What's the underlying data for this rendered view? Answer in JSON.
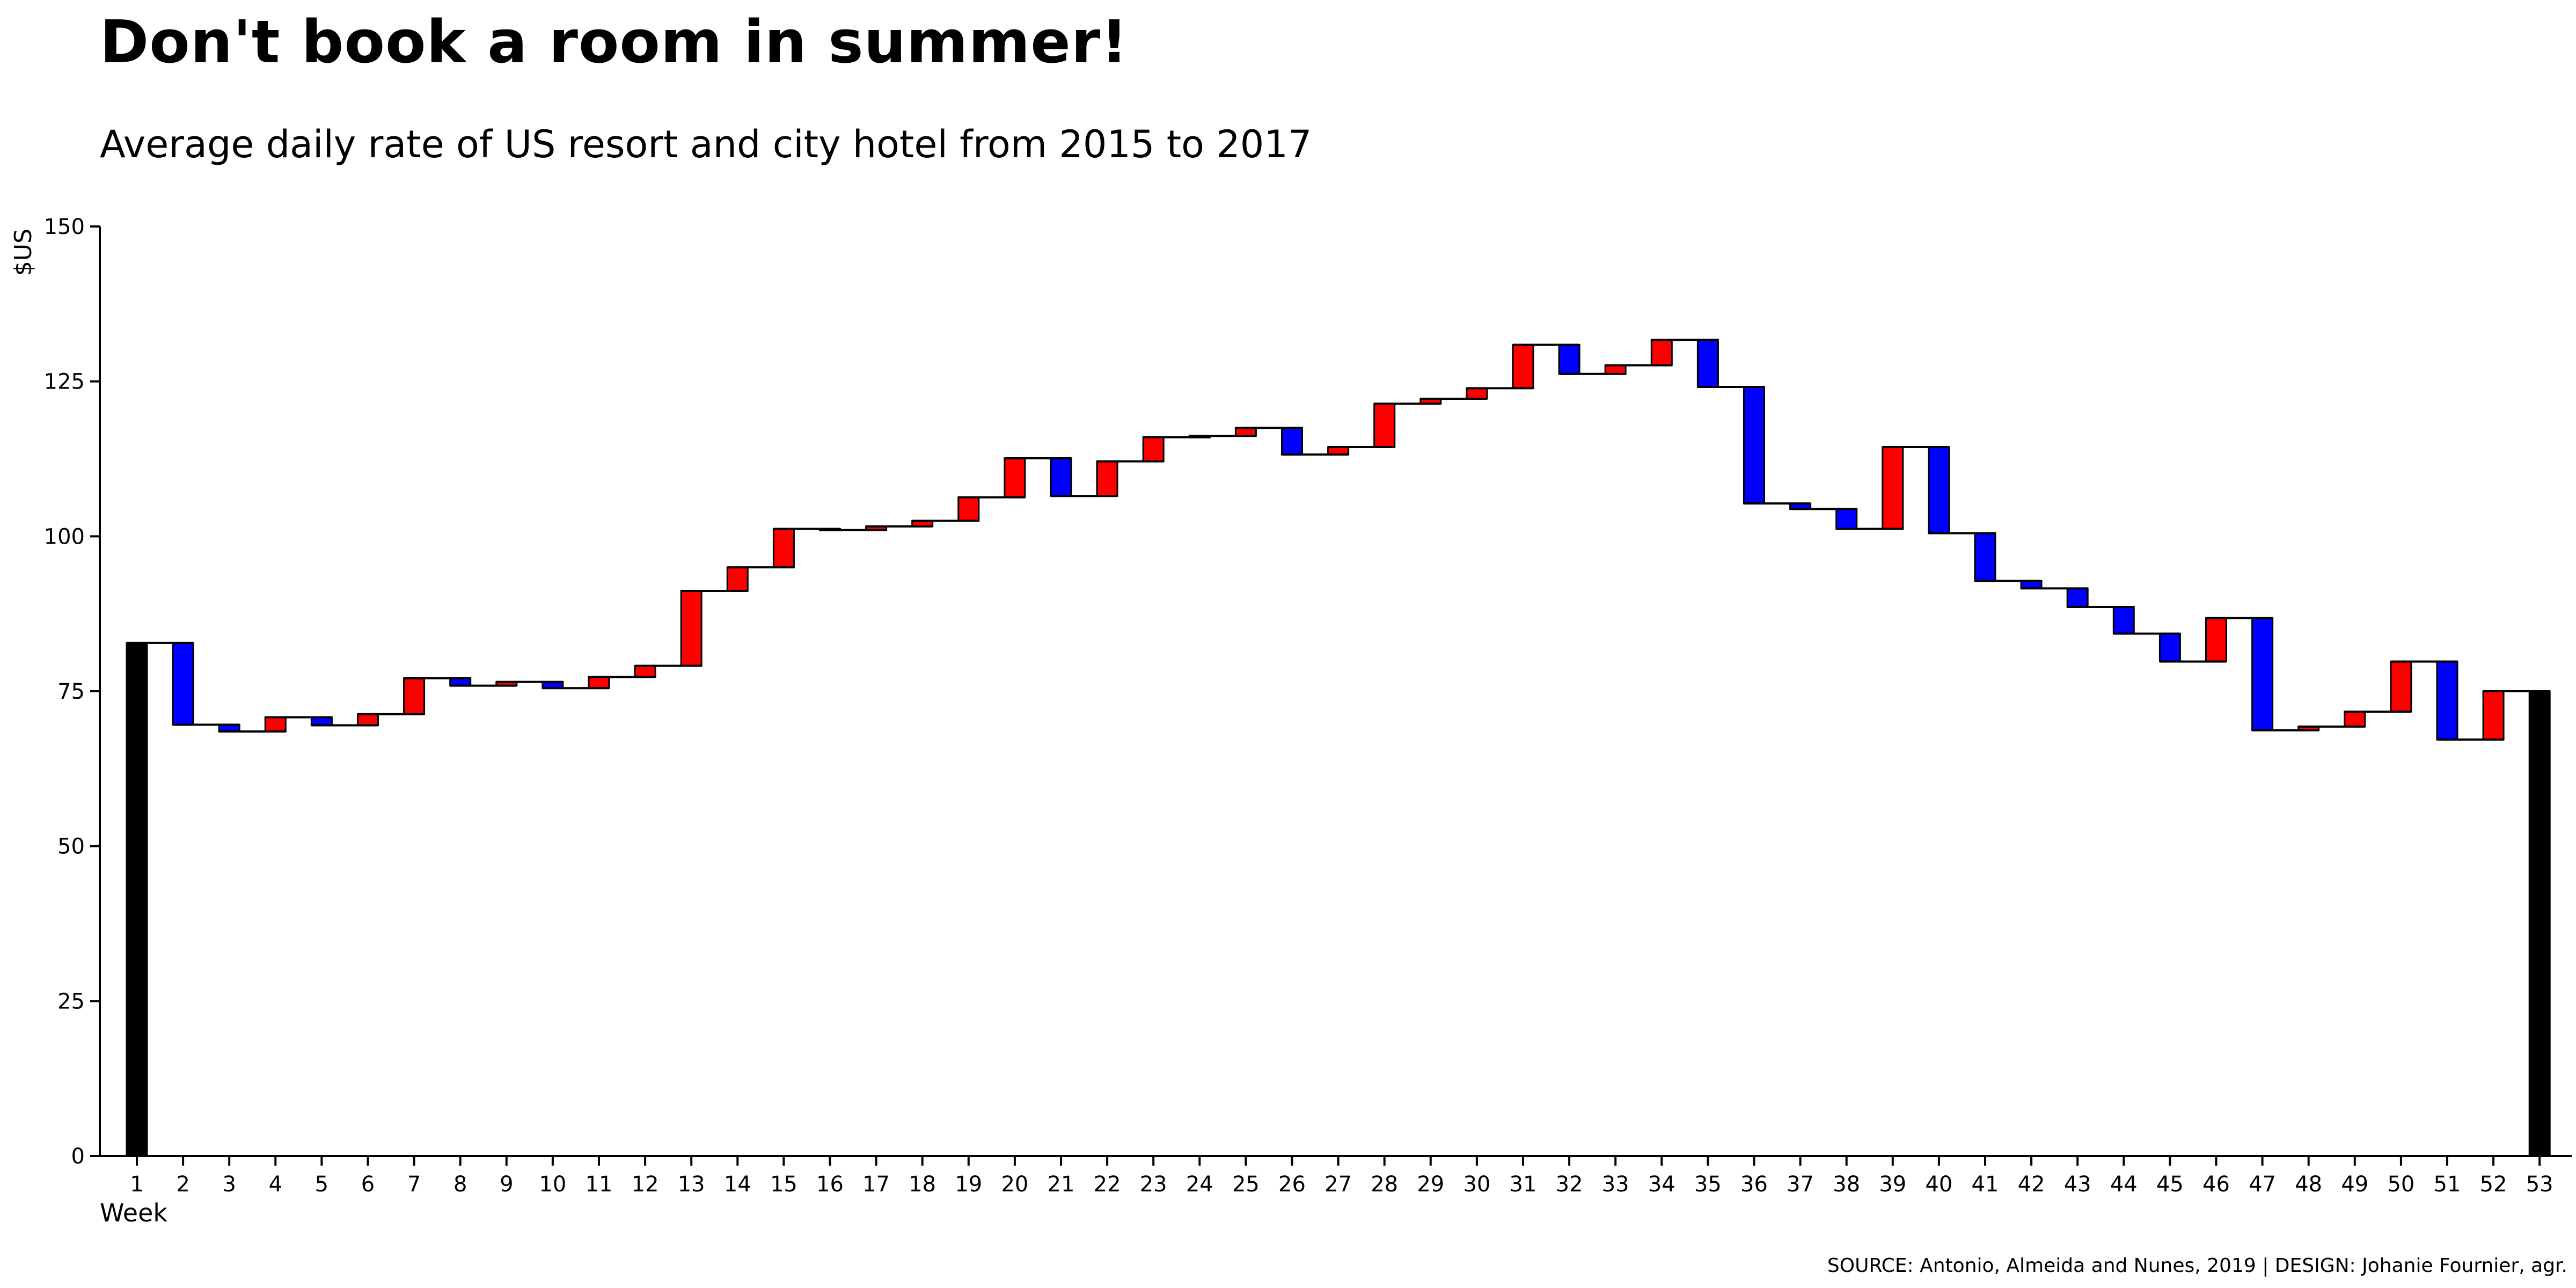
{
  "chart_data": {
    "type": "waterfall",
    "title": "Don't book a room in summer!",
    "subtitle": "Average daily rate of US resort and city hotel from 2015 to 2017",
    "ylabel": "$US",
    "xlabel": "Week",
    "ylim": [
      0,
      150
    ],
    "yticks": [
      0,
      25,
      50,
      75,
      100,
      125,
      150
    ],
    "categories": [
      "1",
      "2",
      "3",
      "4",
      "5",
      "6",
      "7",
      "8",
      "9",
      "10",
      "11",
      "12",
      "13",
      "14",
      "15",
      "16",
      "17",
      "18",
      "19",
      "20",
      "21",
      "22",
      "23",
      "24",
      "25",
      "26",
      "27",
      "28",
      "29",
      "30",
      "31",
      "32",
      "33",
      "34",
      "35",
      "36",
      "37",
      "38",
      "39",
      "40",
      "41",
      "42",
      "43",
      "44",
      "45",
      "46",
      "47",
      "48",
      "49",
      "50",
      "51",
      "52",
      "53"
    ],
    "values": [
      82.8,
      69.6,
      68.5,
      70.8,
      69.5,
      71.3,
      77.1,
      75.9,
      76.5,
      75.5,
      77.3,
      79.1,
      91.2,
      95.0,
      101.2,
      101.0,
      101.6,
      102.5,
      106.3,
      112.6,
      106.5,
      112.1,
      116.0,
      116.2,
      117.5,
      113.2,
      114.4,
      121.4,
      122.2,
      123.9,
      130.9,
      126.2,
      127.6,
      131.7,
      124.1,
      105.3,
      104.4,
      101.2,
      114.4,
      100.5,
      92.8,
      91.6,
      88.6,
      84.3,
      79.8,
      86.8,
      68.7,
      69.3,
      71.7,
      79.8,
      67.2,
      75.0,
      75.0
    ],
    "colors": {
      "increase": "#ff0000",
      "decrease": "#0000ff",
      "total": "#000000"
    },
    "source": "SOURCE: Antonio, Almeida and Nunes, 2019   |  DESIGN: Johanie Fournier, agr."
  }
}
